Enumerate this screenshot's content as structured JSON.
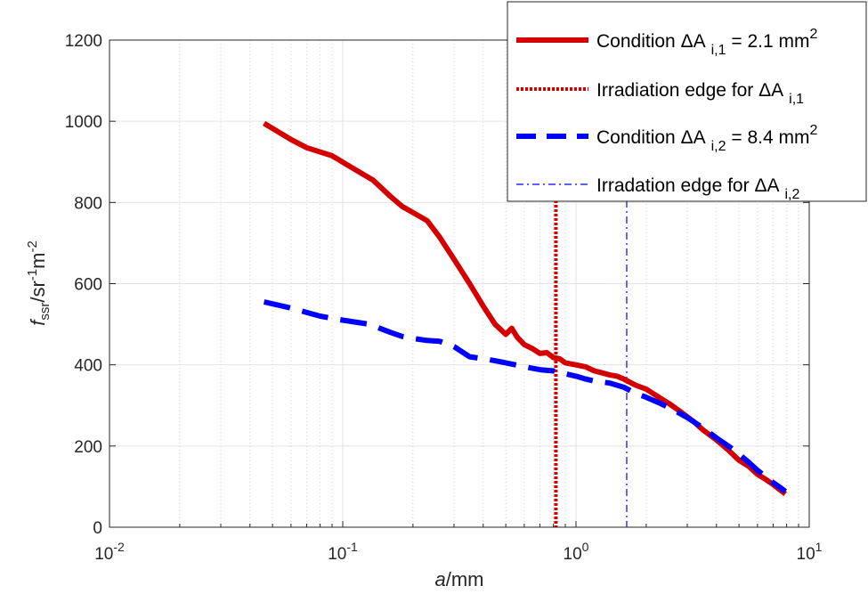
{
  "chart_data": {
    "type": "line",
    "xscale": "log",
    "xlim": [
      0.01,
      10
    ],
    "ylim": [
      0,
      1200
    ],
    "grid": true,
    "legend_position": "top-right",
    "xlabel": {
      "italic": "a",
      "rest": "/mm"
    },
    "ylabel": {
      "f": "f",
      "f_sub": "ssr",
      "slash_sr": "/sr",
      "sup1": "-1",
      "m": "m",
      "sup2": "-2"
    },
    "x_ticks": [
      {
        "value": 0.01,
        "base": "10",
        "exp": "-2"
      },
      {
        "value": 0.1,
        "base": "10",
        "exp": "-1"
      },
      {
        "value": 1,
        "base": "10",
        "exp": "0"
      },
      {
        "value": 10,
        "base": "10",
        "exp": "1"
      }
    ],
    "y_ticks": [
      "0",
      "200",
      "400",
      "600",
      "800",
      "1000",
      "1200"
    ],
    "series": [
      {
        "name_parts": [
          "Condition ",
          "ΔA",
          "i,1",
          " = 2.1 mm",
          "2"
        ],
        "color": "#d40000",
        "style": "solid",
        "x": [
          0.046,
          0.06,
          0.07,
          0.09,
          0.11,
          0.135,
          0.16,
          0.18,
          0.2,
          0.23,
          0.26,
          0.3,
          0.35,
          0.4,
          0.45,
          0.5,
          0.53,
          0.56,
          0.6,
          0.65,
          0.7,
          0.75,
          0.8,
          0.85,
          0.9,
          1.0,
          1.1,
          1.2,
          1.3,
          1.4,
          1.5,
          1.6,
          1.8,
          2.0,
          2.2,
          2.5,
          2.8,
          3.2,
          3.5,
          4.0,
          4.5,
          5.0,
          5.5,
          6.0,
          6.5,
          7.0,
          7.5,
          7.9
        ],
        "y": [
          995,
          955,
          935,
          915,
          885,
          855,
          815,
          790,
          775,
          755,
          715,
          660,
          600,
          545,
          500,
          475,
          490,
          468,
          450,
          440,
          428,
          430,
          418,
          415,
          405,
          400,
          395,
          385,
          380,
          375,
          372,
          365,
          350,
          340,
          325,
          305,
          285,
          260,
          240,
          215,
          190,
          165,
          150,
          130,
          118,
          105,
          92,
          82
        ]
      },
      {
        "name_parts": [
          "Irradiation edge for ",
          "ΔA",
          "i,1",
          "",
          ""
        ],
        "color": "#d40000",
        "style": "dotted",
        "vline": 0.82
      },
      {
        "name_parts": [
          "Condition ",
          "ΔA",
          "i,2",
          " = 8.4 mm",
          "2"
        ],
        "color": "#0000ff",
        "style": "dashed",
        "x": [
          0.046,
          0.06,
          0.08,
          0.1,
          0.13,
          0.16,
          0.18,
          0.2,
          0.23,
          0.26,
          0.3,
          0.35,
          0.4,
          0.45,
          0.5,
          0.55,
          0.6,
          0.7,
          0.8,
          0.9,
          1.0,
          1.1,
          1.2,
          1.4,
          1.6,
          1.8,
          2.0,
          2.3,
          2.6,
          3.0,
          3.5,
          4.0,
          4.5,
          5.0,
          5.5,
          6.0,
          6.5,
          7.0,
          7.5,
          7.9
        ],
        "y": [
          555,
          540,
          520,
          510,
          500,
          480,
          470,
          465,
          460,
          458,
          445,
          420,
          415,
          410,
          405,
          400,
          395,
          388,
          385,
          378,
          372,
          365,
          360,
          355,
          345,
          330,
          320,
          305,
          290,
          270,
          245,
          220,
          200,
          180,
          160,
          140,
          125,
          110,
          98,
          88
        ]
      },
      {
        "name_parts": [
          "Irradation edge for ",
          "ΔA",
          "i,2",
          "",
          ""
        ],
        "color": "#0000ff",
        "style": "dashdot",
        "vline": 1.65
      }
    ]
  }
}
